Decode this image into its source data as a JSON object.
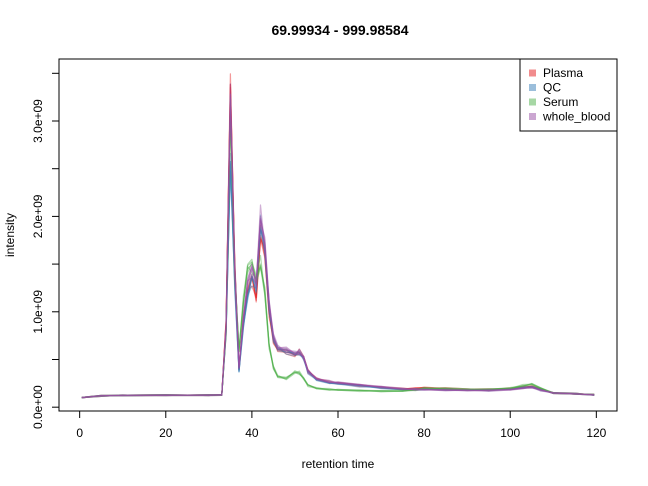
{
  "chart_data": {
    "type": "line",
    "title": "69.99934 - 999.98584",
    "xlabel": "retention time",
    "ylabel": "intensity",
    "xlim": [
      -4.8,
      124.8
    ],
    "ylim": [
      -40000000,
      3650000000
    ],
    "x_ticks": [
      0,
      20,
      40,
      60,
      80,
      100,
      120
    ],
    "x_tick_labels": [
      "0",
      "20",
      "40",
      "60",
      "80",
      "100",
      "120"
    ],
    "y_ticks": [
      0,
      500000000,
      1000000000,
      1500000000,
      2000000000,
      2500000000,
      3000000000,
      3500000000
    ],
    "y_tick_labels": [
      "0.0e+00",
      "",
      "1.0e+09",
      "",
      "2.0e+09",
      "",
      "3.0e+09",
      ""
    ],
    "legend_position": "top-right",
    "grid": false,
    "series": [
      {
        "name": "Plasma",
        "color": "#E41A1C",
        "x": [
          0.5,
          5,
          10,
          20,
          30,
          33,
          34,
          35,
          36,
          37,
          38,
          39,
          40,
          41,
          42,
          43,
          44,
          45,
          46,
          48,
          50,
          51,
          52,
          53,
          55,
          58,
          60,
          65,
          70,
          75,
          78,
          80,
          85,
          90,
          95,
          100,
          103,
          105,
          107,
          110,
          115,
          119.5
        ],
        "y": [
          100000000,
          120000000,
          125000000,
          125000000,
          125000000,
          130000000,
          900000000,
          3350000000,
          1500000000,
          400000000,
          900000000,
          1200000000,
          1350000000,
          1150000000,
          1800000000,
          1600000000,
          1000000000,
          700000000,
          600000000,
          580000000,
          550000000,
          580000000,
          520000000,
          380000000,
          300000000,
          260000000,
          250000000,
          230000000,
          210000000,
          190000000,
          195000000,
          205000000,
          195000000,
          185000000,
          185000000,
          195000000,
          210000000,
          215000000,
          190000000,
          150000000,
          140000000,
          130000000
        ]
      },
      {
        "name": "QC",
        "color": "#377EB8",
        "x": [
          0.5,
          5,
          10,
          20,
          30,
          33,
          34,
          35,
          36,
          37,
          38,
          39,
          40,
          41,
          42,
          43,
          44,
          45,
          46,
          48,
          50,
          51,
          52,
          53,
          55,
          58,
          60,
          65,
          70,
          75,
          78,
          80,
          85,
          90,
          95,
          100,
          103,
          105,
          107,
          110,
          115,
          119.5
        ],
        "y": [
          100000000,
          120000000,
          125000000,
          125000000,
          125000000,
          130000000,
          800000000,
          2550000000,
          1300000000,
          380000000,
          850000000,
          1150000000,
          1350000000,
          1250000000,
          1900000000,
          1650000000,
          1050000000,
          720000000,
          610000000,
          580000000,
          560000000,
          570000000,
          510000000,
          370000000,
          290000000,
          255000000,
          245000000,
          225000000,
          205000000,
          185000000,
          185000000,
          190000000,
          185000000,
          180000000,
          180000000,
          190000000,
          205000000,
          210000000,
          185000000,
          150000000,
          140000000,
          128000000
        ]
      },
      {
        "name": "Serum",
        "color": "#4DAF4A",
        "x": [
          0.5,
          5,
          10,
          20,
          30,
          33,
          34,
          35,
          36,
          37,
          38,
          39,
          40,
          41,
          42,
          43,
          44,
          45,
          46,
          48,
          50,
          51,
          52,
          53,
          55,
          58,
          60,
          65,
          70,
          75,
          78,
          80,
          85,
          90,
          95,
          100,
          103,
          105,
          107,
          110,
          115,
          119.5
        ],
        "y": [
          100000000,
          120000000,
          125000000,
          125000000,
          125000000,
          130000000,
          800000000,
          3100000000,
          1400000000,
          600000000,
          1100000000,
          1450000000,
          1500000000,
          1350000000,
          1500000000,
          1200000000,
          650000000,
          420000000,
          320000000,
          300000000,
          370000000,
          360000000,
          300000000,
          230000000,
          200000000,
          185000000,
          180000000,
          175000000,
          170000000,
          170000000,
          180000000,
          200000000,
          195000000,
          185000000,
          185000000,
          200000000,
          225000000,
          240000000,
          200000000,
          150000000,
          140000000,
          130000000
        ]
      },
      {
        "name": "whole_blood",
        "color": "#984EA3",
        "x": [
          0.5,
          5,
          10,
          20,
          30,
          33,
          34,
          35,
          36,
          37,
          38,
          39,
          40,
          41,
          42,
          43,
          44,
          45,
          46,
          48,
          50,
          51,
          52,
          53,
          55,
          58,
          60,
          65,
          70,
          75,
          78,
          80,
          85,
          90,
          95,
          100,
          103,
          105,
          107,
          110,
          115,
          119.5
        ],
        "y": [
          100000000,
          120000000,
          125000000,
          125000000,
          125000000,
          130000000,
          850000000,
          3250000000,
          1450000000,
          420000000,
          920000000,
          1300000000,
          1450000000,
          1300000000,
          2000000000,
          1700000000,
          1100000000,
          750000000,
          620000000,
          600000000,
          570000000,
          580000000,
          520000000,
          380000000,
          300000000,
          265000000,
          255000000,
          235000000,
          215000000,
          190000000,
          185000000,
          185000000,
          180000000,
          175000000,
          175000000,
          185000000,
          200000000,
          205000000,
          180000000,
          150000000,
          140000000,
          128000000
        ]
      }
    ]
  }
}
